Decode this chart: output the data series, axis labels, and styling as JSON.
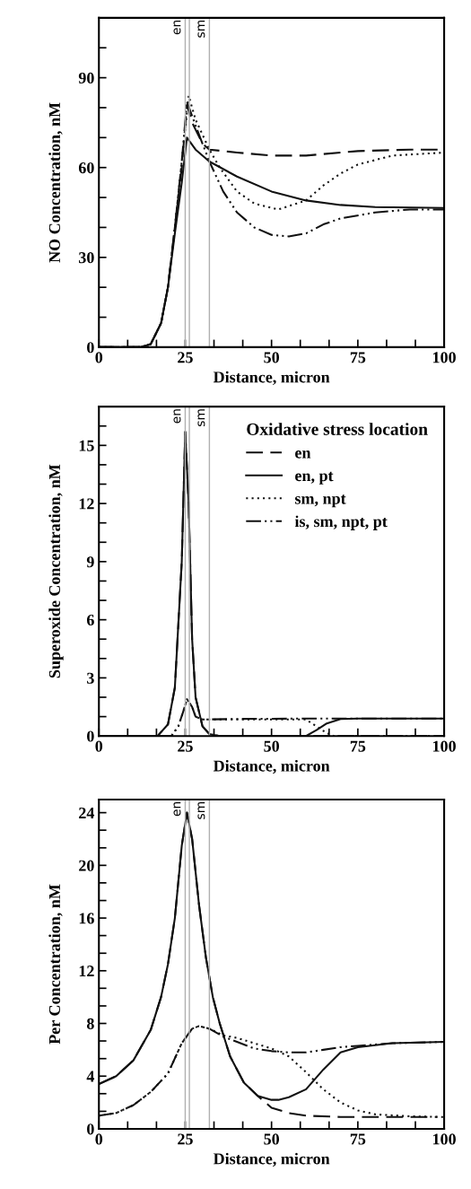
{
  "chart_data": [
    {
      "type": "line",
      "xlabel": "Distance, micron",
      "ylabel": "NO Concentration, nM",
      "xlim": [
        0,
        100
      ],
      "xticks": [
        0,
        {
          "value": 8.33,
          "label": null
        },
        {
          "value": 16.67,
          "label": null
        },
        25,
        {
          "value": 33.33,
          "label": null
        },
        {
          "value": 41.67,
          "label": null
        },
        50,
        {
          "value": 58.33,
          "label": null
        },
        {
          "value": 66.67,
          "label": null
        },
        75,
        {
          "value": 83.33,
          "label": null
        },
        {
          "value": 91.67,
          "label": null
        },
        100
      ],
      "ylim": [
        0,
        110
      ],
      "yticks": [
        0,
        {
          "value": 10,
          "label": null
        },
        {
          "value": 20,
          "label": null
        },
        30,
        {
          "value": 40,
          "label": null
        },
        {
          "value": 50,
          "label": null
        },
        60,
        {
          "value": 70,
          "label": null
        },
        {
          "value": 80,
          "label": null
        },
        90,
        {
          "value": 100,
          "label": null
        }
      ],
      "grid": false,
      "legend": false,
      "ref_lines": [
        {
          "axis": "x",
          "value": 25,
          "label": "en",
          "color": "#b0b0b0"
        },
        {
          "axis": "x",
          "value": 26.2,
          "label": null,
          "color": "#b0b0b0"
        },
        {
          "axis": "x",
          "value": 32,
          "label": "sm",
          "color": "#b0b0b0"
        }
      ],
      "series": [
        {
          "color": "#111111",
          "line_style": "dashed",
          "x": [
            0,
            12,
            15,
            18,
            20,
            22,
            24,
            25.5,
            27,
            30,
            32,
            40,
            50,
            60,
            75,
            90,
            100
          ],
          "values": [
            0,
            0,
            1,
            8,
            20,
            40,
            60,
            81,
            75,
            68,
            66,
            65,
            64,
            64,
            65.5,
            66,
            66
          ]
        },
        {
          "color": "#111111",
          "line_style": "solid",
          "x": [
            0,
            12,
            15,
            18,
            20,
            22,
            24,
            25.5,
            28,
            32,
            40,
            50,
            60,
            70,
            80,
            100
          ],
          "values": [
            0,
            0,
            1,
            8,
            20,
            38,
            55,
            70,
            66,
            62,
            57,
            52,
            49,
            47.5,
            46.8,
            46.5
          ]
        },
        {
          "color": "#111111",
          "line_style": "dotted",
          "x": [
            0,
            12,
            15,
            18,
            20,
            22,
            24,
            26,
            28,
            32,
            35,
            40,
            45,
            52,
            60,
            65,
            70,
            75,
            85,
            100
          ],
          "values": [
            0,
            0,
            1,
            8,
            20,
            40,
            62,
            84,
            76,
            66,
            60,
            52,
            48,
            46,
            49,
            54,
            58,
            61,
            64,
            65
          ]
        },
        {
          "color": "#111111",
          "line_style": "dashdot",
          "x": [
            0,
            12,
            15,
            18,
            20,
            22,
            24,
            25.5,
            28,
            32,
            36,
            40,
            45,
            50,
            55,
            60,
            65,
            70,
            80,
            90,
            100
          ],
          "values": [
            0,
            0,
            1,
            8,
            20,
            40,
            62,
            82,
            74,
            62,
            52,
            45,
            40,
            37.5,
            37,
            38,
            41,
            43,
            45,
            46,
            46
          ]
        }
      ]
    },
    {
      "type": "line",
      "xlabel": "Distance, micron",
      "ylabel": "Superoxide Concentration, nM",
      "xlim": [
        0,
        100
      ],
      "xticks": [
        0,
        {
          "value": 8.33,
          "label": null
        },
        {
          "value": 16.67,
          "label": null
        },
        25,
        {
          "value": 33.33,
          "label": null
        },
        {
          "value": 41.67,
          "label": null
        },
        50,
        {
          "value": 58.33,
          "label": null
        },
        {
          "value": 66.67,
          "label": null
        },
        75,
        {
          "value": 83.33,
          "label": null
        },
        {
          "value": 91.67,
          "label": null
        },
        100
      ],
      "ylim": [
        0,
        17
      ],
      "yticks": [
        0,
        {
          "value": 1,
          "label": null
        },
        {
          "value": 2,
          "label": null
        },
        3,
        {
          "value": 4,
          "label": null
        },
        {
          "value": 5,
          "label": null
        },
        6,
        {
          "value": 7,
          "label": null
        },
        {
          "value": 8,
          "label": null
        },
        9,
        {
          "value": 10,
          "label": null
        },
        {
          "value": 11,
          "label": null
        },
        12,
        {
          "value": 13,
          "label": null
        },
        {
          "value": 14,
          "label": null
        },
        15,
        {
          "value": 16,
          "label": null
        }
      ],
      "grid": false,
      "legend": "top right",
      "legend_title": "Oxidative stress location",
      "ref_lines": [
        {
          "axis": "x",
          "value": 25,
          "label": "en",
          "color": "#b0b0b0"
        },
        {
          "axis": "x",
          "value": 26.2,
          "label": null,
          "color": "#b0b0b0"
        },
        {
          "axis": "x",
          "value": 32,
          "label": "sm",
          "color": "#b0b0b0"
        }
      ],
      "series": [
        {
          "name": "en",
          "color": "#111111",
          "line_style": "dashed",
          "x": [
            0,
            17,
            20,
            22,
            24,
            25,
            26,
            27,
            28,
            30,
            32,
            35,
            100
          ],
          "values": [
            0,
            0,
            0.6,
            2.5,
            9,
            15.7,
            12,
            5,
            2,
            0.5,
            0.1,
            0,
            0
          ]
        },
        {
          "name": "en, pt",
          "color": "#111111",
          "line_style": "solid",
          "x": [
            0,
            17,
            20,
            22,
            24,
            25,
            26,
            27,
            28,
            30,
            32,
            35,
            60,
            63,
            66,
            70,
            75,
            100
          ],
          "values": [
            0,
            0,
            0.6,
            2.5,
            9,
            15.7,
            12,
            5,
            2,
            0.5,
            0.1,
            0,
            0,
            0.3,
            0.65,
            0.88,
            0.9,
            0.9
          ]
        },
        {
          "name": "sm, npt",
          "color": "#111111",
          "line_style": "dotted",
          "x": [
            0,
            21,
            23,
            24.5,
            25.5,
            27,
            28,
            30,
            40,
            60,
            63,
            66,
            68,
            100
          ],
          "values": [
            0,
            0,
            0.5,
            1.3,
            1.9,
            1.5,
            1.0,
            0.85,
            0.85,
            0.85,
            0.5,
            0.15,
            0,
            0
          ]
        },
        {
          "name": "is, sm, npt, pt",
          "color": "#111111",
          "line_style": "dashdot",
          "x": [
            0,
            21,
            23,
            24.5,
            25.5,
            27,
            28,
            30,
            40,
            60,
            80,
            100
          ],
          "values": [
            0,
            0,
            0.5,
            1.3,
            1.9,
            1.5,
            1.0,
            0.85,
            0.88,
            0.9,
            0.9,
            0.9
          ]
        }
      ]
    },
    {
      "type": "line",
      "xlabel": "Distance, micron",
      "ylabel": "Per Concentration, nM",
      "xlim": [
        0,
        100
      ],
      "xticks": [
        0,
        {
          "value": 8.33,
          "label": null
        },
        {
          "value": 16.67,
          "label": null
        },
        25,
        {
          "value": 33.33,
          "label": null
        },
        {
          "value": 41.67,
          "label": null
        },
        50,
        {
          "value": 58.33,
          "label": null
        },
        {
          "value": 66.67,
          "label": null
        },
        75,
        {
          "value": 83.33,
          "label": null
        },
        {
          "value": 91.67,
          "label": null
        },
        100
      ],
      "ylim": [
        0,
        25
      ],
      "yticks": [
        0,
        {
          "value": 1.33,
          "label": null
        },
        {
          "value": 2.67,
          "label": null
        },
        4,
        {
          "value": 5.33,
          "label": null
        },
        {
          "value": 6.67,
          "label": null
        },
        8,
        {
          "value": 9.33,
          "label": null
        },
        {
          "value": 10.67,
          "label": null
        },
        12,
        {
          "value": 13.33,
          "label": null
        },
        {
          "value": 14.67,
          "label": null
        },
        16,
        {
          "value": 17.33,
          "label": null
        },
        {
          "value": 18.67,
          "label": null
        },
        20,
        {
          "value": 21.33,
          "label": null
        },
        {
          "value": 22.67,
          "label": null
        },
        24
      ],
      "grid": false,
      "legend": false,
      "ref_lines": [
        {
          "axis": "x",
          "value": 25,
          "label": "en",
          "color": "#b0b0b0"
        },
        {
          "axis": "x",
          "value": 26.2,
          "label": null,
          "color": "#b0b0b0"
        },
        {
          "axis": "x",
          "value": 32,
          "label": "sm",
          "color": "#b0b0b0"
        }
      ],
      "series": [
        {
          "color": "#111111",
          "line_style": "dashed",
          "x": [
            0,
            5,
            10,
            15,
            18,
            20,
            22,
            24,
            25.5,
            27,
            29,
            31,
            33,
            35,
            38,
            42,
            46,
            50,
            55,
            60,
            70,
            98
          ],
          "values": [
            3.4,
            4,
            5.2,
            7.5,
            10,
            12.5,
            16,
            21.5,
            24,
            22,
            17,
            13,
            10,
            8,
            5.5,
            3.5,
            2.5,
            1.6,
            1.2,
            1.0,
            0.9,
            0.9
          ]
        },
        {
          "color": "#111111",
          "line_style": "solid",
          "x": [
            0,
            5,
            10,
            15,
            18,
            20,
            22,
            24,
            25.5,
            27,
            29,
            31,
            33,
            35,
            38,
            42,
            46,
            50,
            52,
            55,
            60,
            65,
            70,
            75,
            85,
            100
          ],
          "values": [
            3.4,
            4,
            5.2,
            7.5,
            10,
            12.5,
            16,
            21.5,
            24,
            22,
            17,
            13,
            10,
            8,
            5.5,
            3.5,
            2.5,
            2.2,
            2.2,
            2.4,
            3,
            4.5,
            5.8,
            6.2,
            6.5,
            6.6
          ]
        },
        {
          "color": "#111111",
          "line_style": "dotted",
          "x": [
            0,
            5,
            10,
            15,
            20,
            24,
            27,
            29,
            32,
            36,
            40,
            45,
            50,
            55,
            60,
            65,
            70,
            75,
            80,
            90,
            100
          ],
          "values": [
            1,
            1.2,
            1.8,
            2.8,
            4.2,
            6.5,
            7.6,
            7.8,
            7.6,
            7.1,
            6.9,
            6.5,
            6.1,
            5.5,
            4.3,
            3,
            2,
            1.4,
            1.1,
            0.95,
            0.9
          ]
        },
        {
          "color": "#111111",
          "line_style": "dashdot",
          "x": [
            0,
            5,
            10,
            15,
            20,
            24,
            27,
            29,
            32,
            36,
            40,
            45,
            50,
            55,
            60,
            65,
            70,
            75,
            85,
            100
          ],
          "values": [
            1,
            1.2,
            1.8,
            2.8,
            4.2,
            6.5,
            7.6,
            7.8,
            7.6,
            7,
            6.6,
            6.1,
            5.9,
            5.8,
            5.8,
            6.0,
            6.2,
            6.3,
            6.5,
            6.6
          ]
        }
      ]
    }
  ]
}
